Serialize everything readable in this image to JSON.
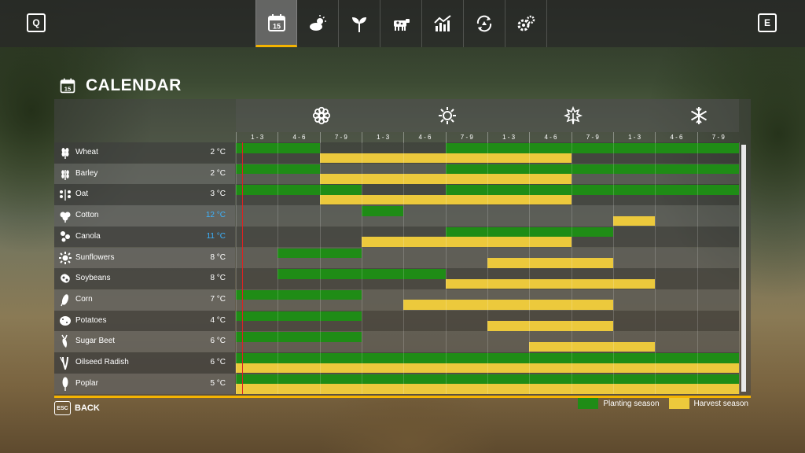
{
  "topbar": {
    "left_key": "Q",
    "right_key": "E",
    "tabs": [
      {
        "icon": "calendar-icon",
        "label": "15",
        "active": true
      },
      {
        "icon": "weather-icon",
        "active": false
      },
      {
        "icon": "sprout-icon",
        "active": false
      },
      {
        "icon": "cow-icon",
        "active": false
      },
      {
        "icon": "prices-chart-icon",
        "active": false
      },
      {
        "icon": "cycle-icon",
        "active": false
      },
      {
        "icon": "settings-icon",
        "active": false
      }
    ]
  },
  "page": {
    "title": "CALENDAR",
    "title_icon_number": "15"
  },
  "seasons": [
    "spring-flower-icon",
    "summer-sun-icon",
    "autumn-leaf-icon",
    "winter-snowflake-icon"
  ],
  "months": [
    "1 - 3",
    "4 - 6",
    "7 - 9",
    "1 - 3",
    "4 - 6",
    "7 - 9",
    "1 - 3",
    "4 - 6",
    "7 - 9",
    "1 - 3",
    "4 - 6",
    "7 - 9"
  ],
  "crops": [
    {
      "name": "Wheat",
      "icon": "wheat-icon",
      "temp": "2 °C",
      "cold": false,
      "plant": [
        [
          0,
          2
        ],
        [
          5,
          12
        ]
      ],
      "harvest": [
        [
          2,
          8
        ]
      ]
    },
    {
      "name": "Barley",
      "icon": "barley-icon",
      "temp": "2 °C",
      "cold": false,
      "plant": [
        [
          0,
          2
        ],
        [
          5,
          12
        ]
      ],
      "harvest": [
        [
          2,
          8
        ]
      ]
    },
    {
      "name": "Oat",
      "icon": "oat-icon",
      "temp": "3 °C",
      "cold": false,
      "plant": [
        [
          0,
          3
        ],
        [
          5,
          12
        ]
      ],
      "harvest": [
        [
          2,
          8
        ]
      ]
    },
    {
      "name": "Cotton",
      "icon": "cotton-icon",
      "temp": "12 °C",
      "cold": true,
      "plant": [
        [
          3,
          4
        ]
      ],
      "harvest": [
        [
          9,
          10
        ]
      ]
    },
    {
      "name": "Canola",
      "icon": "canola-icon",
      "temp": "11 °C",
      "cold": true,
      "plant": [
        [
          5,
          9
        ]
      ],
      "harvest": [
        [
          3,
          8
        ]
      ]
    },
    {
      "name": "Sunflowers",
      "icon": "sunflower-icon",
      "temp": "8 °C",
      "cold": false,
      "plant": [
        [
          1,
          3
        ]
      ],
      "harvest": [
        [
          6,
          9
        ]
      ]
    },
    {
      "name": "Soybeans",
      "icon": "soybean-icon",
      "temp": "8 °C",
      "cold": false,
      "plant": [
        [
          1,
          5
        ]
      ],
      "harvest": [
        [
          5,
          10
        ]
      ]
    },
    {
      "name": "Corn",
      "icon": "corn-icon",
      "temp": "7 °C",
      "cold": false,
      "plant": [
        [
          0,
          3
        ]
      ],
      "harvest": [
        [
          4,
          9
        ]
      ]
    },
    {
      "name": "Potatoes",
      "icon": "potato-icon",
      "temp": "4 °C",
      "cold": false,
      "plant": [
        [
          0,
          3
        ]
      ],
      "harvest": [
        [
          6,
          9
        ]
      ]
    },
    {
      "name": "Sugar Beet",
      "icon": "sugarbeet-icon",
      "temp": "6 °C",
      "cold": false,
      "plant": [
        [
          0,
          3
        ]
      ],
      "harvest": [
        [
          7,
          10
        ]
      ]
    },
    {
      "name": "Oilseed Radish",
      "icon": "radish-icon",
      "temp": "6 °C",
      "cold": false,
      "plant": [
        [
          0,
          12
        ]
      ],
      "harvest": [
        [
          0,
          12
        ]
      ]
    },
    {
      "name": "Poplar",
      "icon": "poplar-icon",
      "temp": "5 °C",
      "cold": false,
      "plant": [
        [
          0,
          12
        ]
      ],
      "harvest": [
        [
          0,
          12
        ]
      ]
    }
  ],
  "legend": {
    "planting": "Planting season",
    "harvest": "Harvest season",
    "planting_color": "#1f8c16",
    "harvest_color": "#ecc93c"
  },
  "back": {
    "key": "ESC",
    "label": "BACK"
  }
}
